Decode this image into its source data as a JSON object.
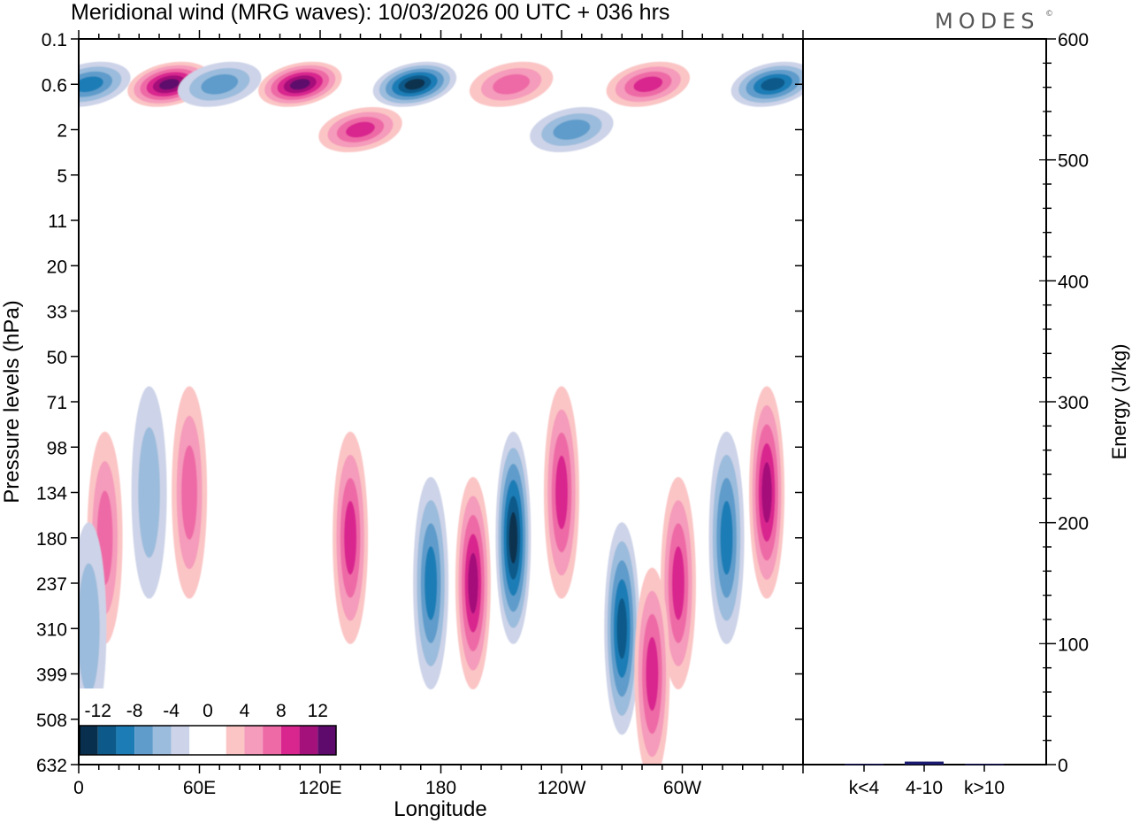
{
  "chart_data": [
    {
      "type": "heatmap",
      "title": "Meridional wind (MRG waves):  10/03/2026  00 UTC  + 036 hrs",
      "xlabel": "Longitude",
      "ylabel": "Pressure levels (hPa)",
      "x_ticks": [
        "0",
        "60E",
        "120E",
        "180",
        "120W",
        "60W"
      ],
      "x_tick_values": [
        0,
        60,
        120,
        180,
        240,
        300
      ],
      "xlim": [
        0,
        360
      ],
      "y_ticks": [
        "0.1",
        "0.6",
        "2",
        "5",
        "11",
        "20",
        "33",
        "50",
        "71",
        "98",
        "134",
        "180",
        "237",
        "310",
        "399",
        "508",
        "632"
      ],
      "colorbar": {
        "labels": [
          "-12",
          "-8",
          "-4",
          "0",
          "4",
          "8",
          "12"
        ],
        "colors": [
          "#08304e",
          "#0d5a8a",
          "#1c7db6",
          "#5f9ccb",
          "#9bbcdc",
          "#cdd3e8",
          "#ffffff",
          "#ffffff",
          "#fbc5c5",
          "#f59bbb",
          "#ee6aa6",
          "#d9268f",
          "#a5117a",
          "#5e0a6c"
        ]
      },
      "features": [
        {
          "lon": 45,
          "level": "0.6",
          "v": 14
        },
        {
          "lon": 110,
          "level": "0.6",
          "v": 13
        },
        {
          "lon": 167,
          "level": "0.6",
          "v": -14
        },
        {
          "lon": 215,
          "level": "0.6",
          "v": 7
        },
        {
          "lon": 283,
          "level": "0.6",
          "v": 9
        },
        {
          "lon": 345,
          "level": "0.6",
          "v": -10
        },
        {
          "lon": 70,
          "level": "0.6",
          "v": -7
        },
        {
          "lon": 5,
          "level": "0.6",
          "v": -8
        },
        {
          "lon": 140,
          "level": "2",
          "v": 8
        },
        {
          "lon": 245,
          "level": "2",
          "v": -6
        },
        {
          "lon": 13,
          "level": "180",
          "v": 7
        },
        {
          "lon": 35,
          "level": "134",
          "v": -5
        },
        {
          "lon": 55,
          "level": "134",
          "v": 6
        },
        {
          "lon": 135,
          "level": "180",
          "v": 9
        },
        {
          "lon": 175,
          "level": "237",
          "v": -9
        },
        {
          "lon": 196,
          "level": "237",
          "v": 12
        },
        {
          "lon": 216,
          "level": "180",
          "v": -14
        },
        {
          "lon": 240,
          "level": "134",
          "v": 8
        },
        {
          "lon": 270,
          "level": "310",
          "v": -10
        },
        {
          "lon": 298,
          "level": "237",
          "v": 8
        },
        {
          "lon": 322,
          "level": "180",
          "v": -9
        },
        {
          "lon": 342,
          "level": "134",
          "v": 10
        },
        {
          "lon": 285,
          "level": "399",
          "v": 8
        },
        {
          "lon": 5,
          "level": "310",
          "v": -5
        }
      ]
    },
    {
      "type": "bar",
      "ylabel": "Energy (J/kg)",
      "categories": [
        "k<4",
        "4-10",
        "k>10"
      ],
      "values": [
        0.5,
        2.5,
        0.5
      ],
      "ylim": [
        0,
        600
      ],
      "y_ticks": [
        "0",
        "100",
        "200",
        "300",
        "400",
        "500",
        "600"
      ],
      "bar_color": "#1a1a6e"
    }
  ],
  "logo_text": "MODES",
  "logo_mark": "©"
}
